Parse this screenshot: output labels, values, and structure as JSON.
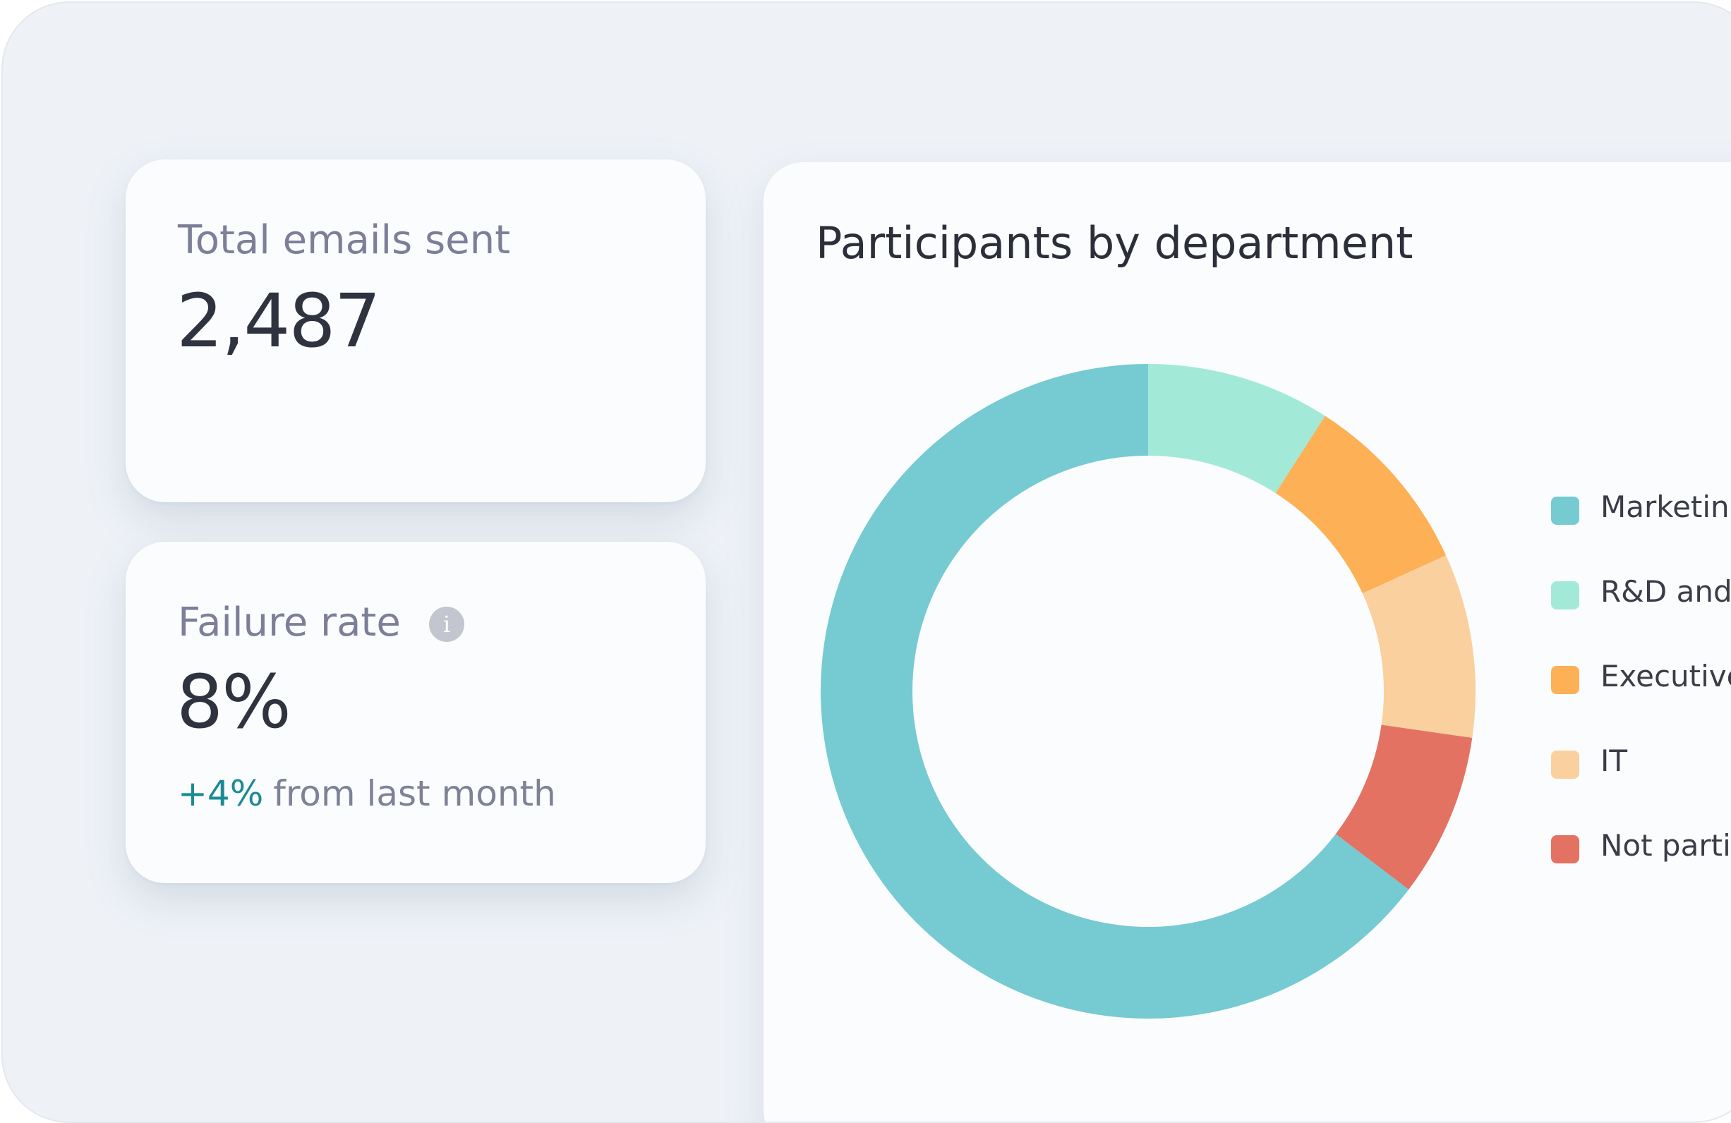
{
  "stats": {
    "emails": {
      "label": "Total emails sent",
      "value": "2,487"
    },
    "failure": {
      "label": "Failure rate",
      "value": "8%",
      "info_icon": "info-icon",
      "delta": "+4%",
      "delta_text": "from last month",
      "delta_color": "#1a8a96"
    }
  },
  "chart_data": {
    "type": "pie",
    "variant": "donut",
    "title": "Participants by department",
    "legend_position": "right",
    "labels": [
      "Marketing",
      "R&D and p",
      "Executives",
      "IT",
      "Not partic"
    ],
    "values": [
      64,
      9,
      9,
      9,
      8
    ],
    "colors": [
      "#76cad1",
      "#a2ead7",
      "#fdb055",
      "#fad09f",
      "#e47262"
    ]
  }
}
